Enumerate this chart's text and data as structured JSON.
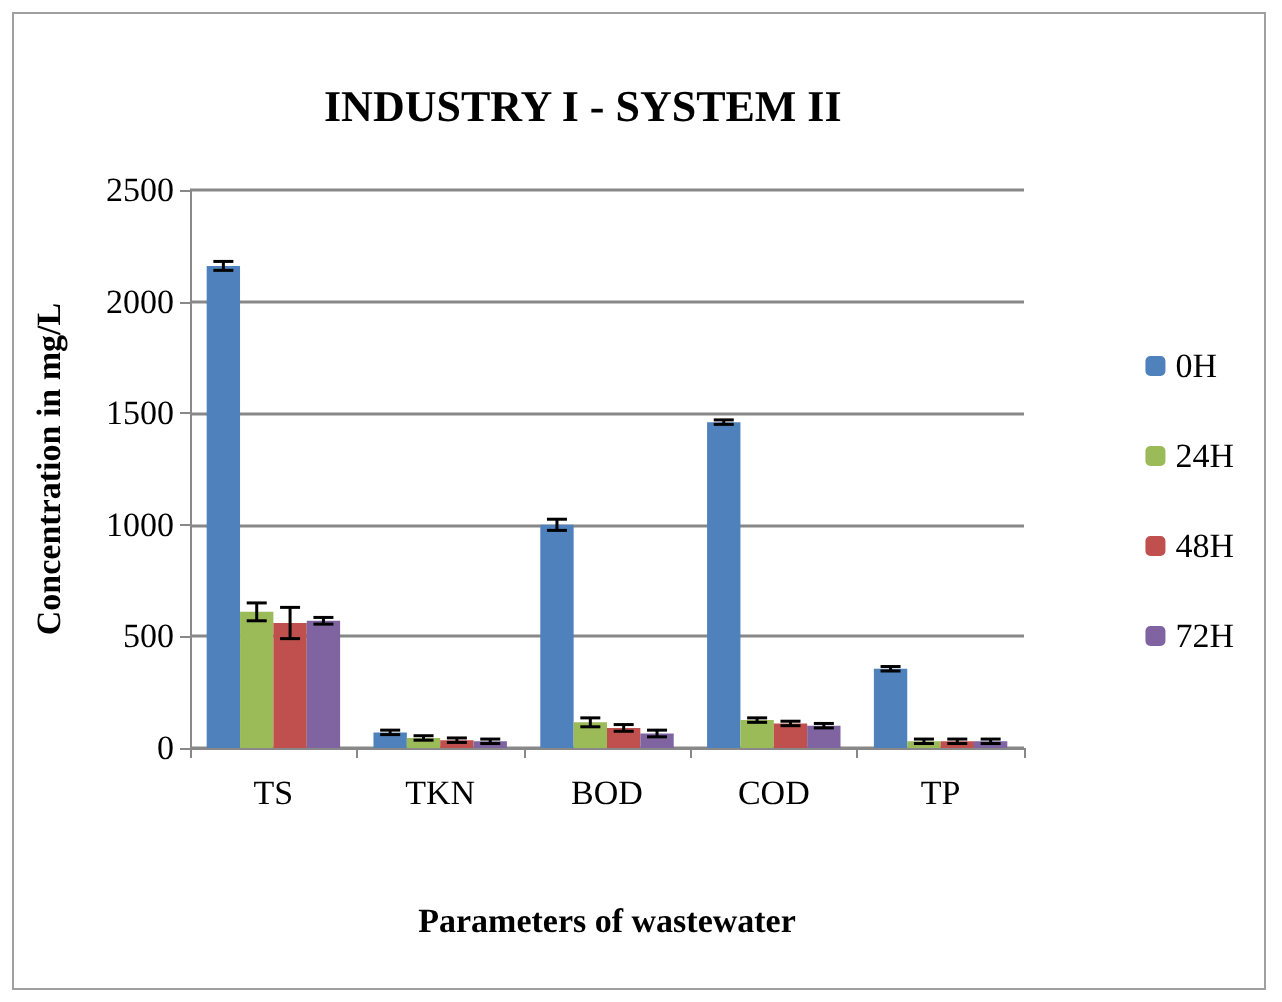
{
  "chart_data": {
    "type": "bar",
    "title": "INDUSTRY I - SYSTEM II",
    "xlabel": "Parameters of wastewater",
    "ylabel": "Concentration in mg/L",
    "categories": [
      "TS",
      "TKN",
      "BOD",
      "COD",
      "TP"
    ],
    "series": [
      {
        "name": "0H",
        "color": "#4f81bd",
        "values": [
          2160,
          70,
          1000,
          1460,
          355
        ],
        "errors": [
          20,
          10,
          25,
          10,
          10
        ]
      },
      {
        "name": "24H",
        "color": "#9bbb59",
        "values": [
          610,
          45,
          115,
          125,
          30
        ],
        "errors": [
          40,
          10,
          20,
          10,
          10
        ]
      },
      {
        "name": "48H",
        "color": "#c0504d",
        "values": [
          560,
          35,
          90,
          110,
          30
        ],
        "errors": [
          70,
          10,
          15,
          10,
          10
        ]
      },
      {
        "name": "72H",
        "color": "#8064a2",
        "values": [
          570,
          30,
          65,
          100,
          30
        ],
        "errors": [
          15,
          10,
          15,
          10,
          10
        ]
      }
    ],
    "ylim": [
      0,
      2500
    ],
    "yticks": [
      0,
      500,
      1000,
      1500,
      2000,
      2500
    ],
    "grid": "y",
    "legend": "right"
  }
}
